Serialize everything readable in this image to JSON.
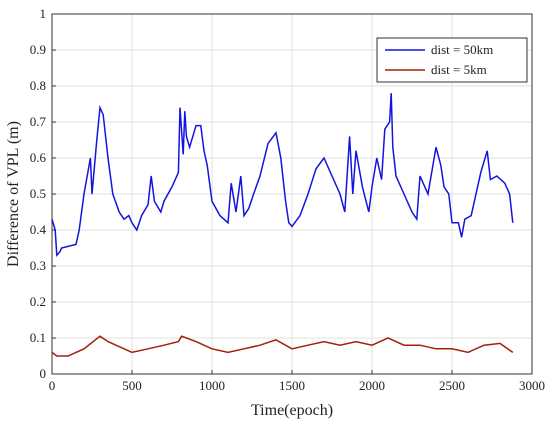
{
  "chart_data": {
    "type": "line",
    "xlabel": "Time(epoch)",
    "ylabel": "Difference of VPL (m)",
    "xlim": [
      0,
      3000
    ],
    "xticks": [
      0,
      500,
      1000,
      1500,
      2000,
      2500,
      3000
    ],
    "ylim": [
      0,
      1
    ],
    "yticks": [
      0,
      0.1,
      0.2,
      0.3,
      0.4,
      0.5,
      0.6,
      0.7,
      0.8,
      0.9,
      1
    ],
    "grid": true,
    "legend": "upper right",
    "series": [
      {
        "name": "dist = 50km",
        "color": "#1414e0",
        "x": [
          0,
          20,
          30,
          50,
          60,
          150,
          170,
          200,
          240,
          250,
          280,
          300,
          320,
          350,
          380,
          420,
          450,
          480,
          500,
          530,
          560,
          600,
          620,
          640,
          680,
          700,
          750,
          790,
          800,
          820,
          830,
          840,
          860,
          900,
          930,
          950,
          970,
          1000,
          1050,
          1100,
          1120,
          1150,
          1180,
          1200,
          1230,
          1260,
          1300,
          1350,
          1400,
          1430,
          1460,
          1480,
          1500,
          1550,
          1600,
          1650,
          1700,
          1750,
          1800,
          1830,
          1860,
          1880,
          1900,
          1940,
          1980,
          2000,
          2030,
          2060,
          2080,
          2110,
          2120,
          2130,
          2150,
          2200,
          2250,
          2280,
          2300,
          2350,
          2400,
          2430,
          2450,
          2480,
          2500,
          2540,
          2560,
          2580,
          2620,
          2650,
          2680,
          2720,
          2740,
          2780,
          2830,
          2860,
          2880
        ],
        "values": [
          0.43,
          0.4,
          0.33,
          0.34,
          0.35,
          0.36,
          0.4,
          0.5,
          0.6,
          0.5,
          0.65,
          0.74,
          0.72,
          0.6,
          0.5,
          0.45,
          0.43,
          0.44,
          0.42,
          0.4,
          0.44,
          0.47,
          0.55,
          0.48,
          0.45,
          0.48,
          0.52,
          0.56,
          0.74,
          0.61,
          0.73,
          0.66,
          0.63,
          0.69,
          0.69,
          0.62,
          0.58,
          0.48,
          0.44,
          0.42,
          0.53,
          0.45,
          0.55,
          0.44,
          0.46,
          0.5,
          0.55,
          0.64,
          0.67,
          0.6,
          0.48,
          0.42,
          0.41,
          0.44,
          0.5,
          0.57,
          0.6,
          0.55,
          0.5,
          0.45,
          0.66,
          0.5,
          0.62,
          0.52,
          0.45,
          0.52,
          0.6,
          0.54,
          0.68,
          0.7,
          0.78,
          0.63,
          0.55,
          0.5,
          0.45,
          0.43,
          0.55,
          0.5,
          0.63,
          0.58,
          0.52,
          0.5,
          0.42,
          0.42,
          0.38,
          0.43,
          0.44,
          0.5,
          0.56,
          0.62,
          0.54,
          0.55,
          0.53,
          0.5,
          0.42
        ]
      },
      {
        "name": "dist = 5km",
        "color": "#a0200a",
        "x": [
          0,
          30,
          100,
          200,
          300,
          350,
          400,
          450,
          500,
          600,
          700,
          790,
          810,
          900,
          1000,
          1100,
          1200,
          1300,
          1400,
          1500,
          1600,
          1700,
          1800,
          1900,
          2000,
          2100,
          2200,
          2300,
          2400,
          2500,
          2600,
          2700,
          2800,
          2880
        ],
        "values": [
          0.06,
          0.05,
          0.05,
          0.07,
          0.105,
          0.09,
          0.08,
          0.07,
          0.06,
          0.07,
          0.08,
          0.09,
          0.105,
          0.09,
          0.07,
          0.06,
          0.07,
          0.08,
          0.095,
          0.07,
          0.08,
          0.09,
          0.08,
          0.09,
          0.08,
          0.1,
          0.08,
          0.08,
          0.07,
          0.07,
          0.06,
          0.08,
          0.085,
          0.06
        ]
      }
    ]
  }
}
